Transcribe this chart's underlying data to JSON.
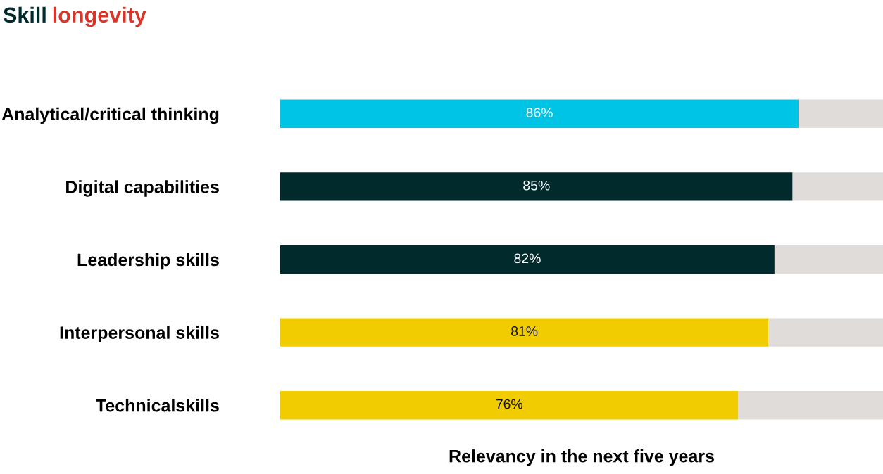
{
  "chart_data": {
    "type": "bar",
    "orientation": "horizontal",
    "stacked": true,
    "title": "Skill longevity",
    "xlabel": "Relevancy in the next five years",
    "categories": [
      "Analytical/critical thinking",
      "Digital capabilities",
      "Leadership skills",
      "Interpersonal skills",
      "Technicalskills"
    ],
    "series": [
      {
        "colors": [
          "#00c4e6",
          "#012a2d",
          "#012a2d",
          "#f0cc00",
          "#f0cc00"
        ],
        "values": [
          86,
          85,
          82,
          81,
          76
        ],
        "value_labels": [
          "86%",
          "85%",
          "82%",
          "81%",
          "76%"
        ]
      },
      {
        "color": "#e0dcd9",
        "values": [
          14,
          15,
          18,
          19,
          24
        ]
      }
    ],
    "xlim": [
      0,
      100
    ],
    "tick_labels": "y",
    "grid": false,
    "legend": false
  }
}
